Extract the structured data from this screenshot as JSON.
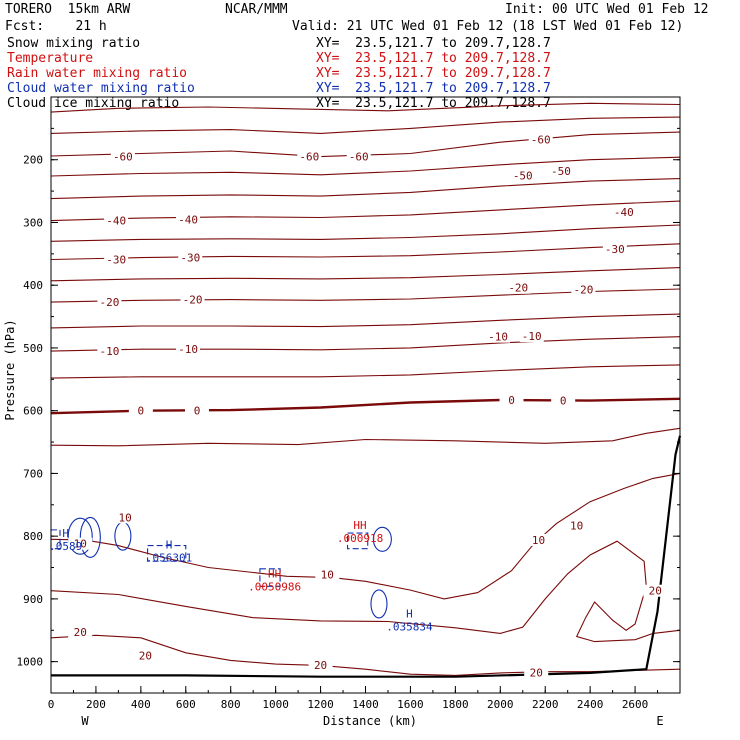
{
  "header": {
    "model": "TORERO  15km ARW",
    "center": "NCAR/MMM",
    "init": "Init: 00 UTC Wed 01 Feb 12",
    "fcst": "Fcst:    21 h",
    "valid": "Valid: 21 UTC Wed 01 Feb 12 (18 LST Wed 01 Feb 12)"
  },
  "colors": {
    "dark_red": "#7a0a0a",
    "red": "#d01010",
    "blue": "#1030b0",
    "black": "#000000"
  },
  "legend": [
    {
      "label": "Snow mixing ratio",
      "xy": "XY=  23.5,121.7 to 209.7,128.7",
      "color": "#000000"
    },
    {
      "label": "Temperature",
      "xy": "XY=  23.5,121.7 to 209.7,128.7",
      "color": "#d01010"
    },
    {
      "label": "Rain water mixing ratio",
      "xy": "XY=  23.5,121.7 to 209.7,128.7",
      "color": "#d01010"
    },
    {
      "label": "Cloud water mixing ratio",
      "xy": "XY=  23.5,121.7 to 209.7,128.7",
      "color": "#1030b0"
    },
    {
      "label": "Cloud ice mixing ratio",
      "xy": "XY=  23.5,121.7 to 209.7,128.7",
      "color": "#000000"
    }
  ],
  "chart_data": {
    "type": "contour",
    "xlabel": "Distance (km)",
    "ylabel": "Pressure (hPa)",
    "xlim": [
      0,
      2800
    ],
    "ylim": [
      1050,
      100
    ],
    "x_ticks": [
      0,
      200,
      400,
      600,
      800,
      1000,
      1200,
      1400,
      1600,
      1800,
      2000,
      2200,
      2400,
      2600
    ],
    "y_ticks": [
      200,
      300,
      400,
      500,
      600,
      700,
      800,
      900,
      1000
    ],
    "x_end_labels": {
      "left": "W",
      "right": "E"
    },
    "temperature_contours": [
      {
        "level": -60,
        "labels": [
          {
            "x": 320,
            "p": 195
          },
          {
            "x": 1150,
            "p": 195
          },
          {
            "x": 1370,
            "p": 195
          },
          {
            "x": 2180,
            "p": 168
          }
        ]
      },
      {
        "level": -50,
        "labels": [
          {
            "x": 2100,
            "p": 225
          },
          {
            "x": 2270,
            "p": 218
          }
        ]
      },
      {
        "level": -40,
        "labels": [
          {
            "x": 290,
            "p": 297
          },
          {
            "x": 610,
            "p": 295
          },
          {
            "x": 2550,
            "p": 283
          }
        ]
      },
      {
        "level": -30,
        "labels": [
          {
            "x": 290,
            "p": 359
          },
          {
            "x": 620,
            "p": 356
          },
          {
            "x": 2510,
            "p": 342
          }
        ]
      },
      {
        "level": -20,
        "labels": [
          {
            "x": 260,
            "p": 427
          },
          {
            "x": 630,
            "p": 423
          },
          {
            "x": 2080,
            "p": 404
          },
          {
            "x": 2370,
            "p": 407
          }
        ]
      },
      {
        "level": -10,
        "labels": [
          {
            "x": 260,
            "p": 505
          },
          {
            "x": 610,
            "p": 502
          },
          {
            "x": 1990,
            "p": 482
          },
          {
            "x": 2140,
            "p": 481
          }
        ]
      },
      {
        "level": 0,
        "labels": [
          {
            "x": 400,
            "p": 600
          },
          {
            "x": 650,
            "p": 600
          },
          {
            "x": 2050,
            "p": 583
          },
          {
            "x": 2280,
            "p": 584
          }
        ]
      },
      {
        "level": 10,
        "labels": [
          {
            "x": 130,
            "p": 812
          },
          {
            "x": 330,
            "p": 770
          },
          {
            "x": 1230,
            "p": 861
          },
          {
            "x": 2170,
            "p": 806
          },
          {
            "x": 2340,
            "p": 783
          }
        ]
      },
      {
        "level": 20,
        "labels": [
          {
            "x": 130,
            "p": 953
          },
          {
            "x": 420,
            "p": 990
          },
          {
            "x": 1200,
            "p": 1005
          },
          {
            "x": 2160,
            "p": 1017
          },
          {
            "x": 2690,
            "p": 887
          }
        ]
      }
    ],
    "maxima": [
      {
        "label": "H",
        "value": ".0589",
        "x": 30,
        "p": 808,
        "color": "#1030b0"
      },
      {
        "label": "H",
        "value": ".056301",
        "x": 490,
        "p": 826,
        "color": "#1030b0"
      },
      {
        "label": "HH",
        "value": ".0050986",
        "x": 960,
        "p": 872,
        "color": "#d01010"
      },
      {
        "label": "HH",
        "value": ".000918",
        "x": 1340,
        "p": 795,
        "color": "#d01010"
      },
      {
        "label": "H",
        "value": ".035834",
        "x": 1560,
        "p": 936,
        "color": "#1030b0"
      }
    ]
  }
}
